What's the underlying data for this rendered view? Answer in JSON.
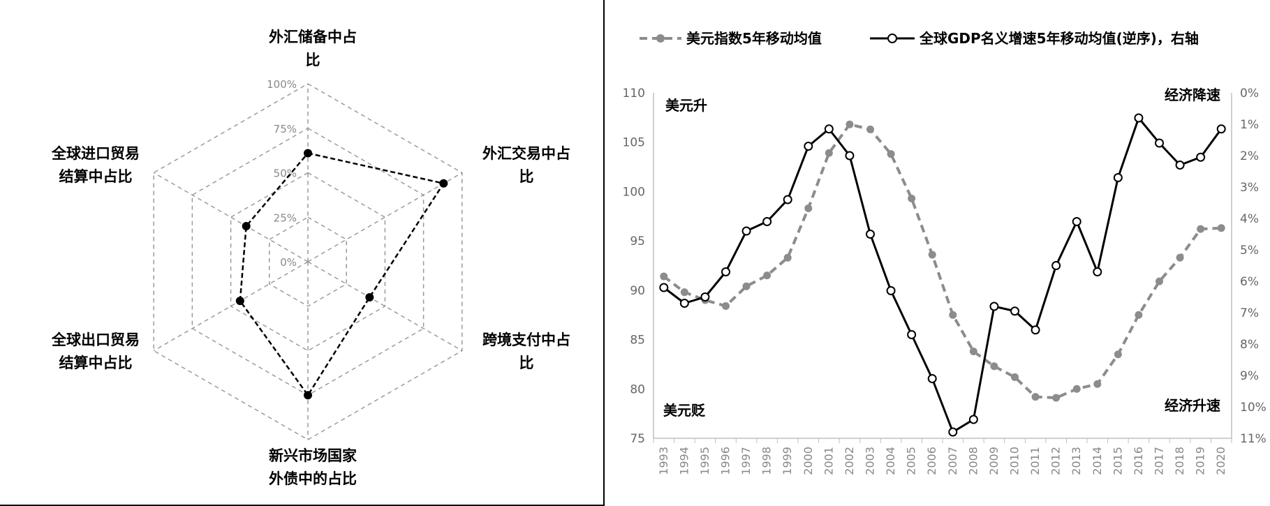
{
  "chart_data": [
    {
      "type": "radar",
      "categories": [
        [
          "外汇储备中占",
          "比"
        ],
        [
          "外汇交易中占",
          "比"
        ],
        [
          "跨境支付中占",
          "比"
        ],
        [
          "新兴市场国家",
          "外债中的占比"
        ],
        [
          "全球出口贸易",
          "结算中占比"
        ],
        [
          "全球进口贸易",
          "结算中占比"
        ]
      ],
      "ticks": [
        "0%",
        "25%",
        "50%",
        "75%",
        "100%"
      ],
      "range": [
        0,
        100
      ],
      "values": [
        61,
        88,
        40,
        75,
        44,
        40
      ],
      "grid": true,
      "colors": {
        "grid": "#999999",
        "series": "#000000"
      }
    },
    {
      "type": "line",
      "x": [
        1993,
        1994,
        1995,
        1996,
        1997,
        1998,
        1999,
        2000,
        2001,
        2002,
        2003,
        2004,
        2005,
        2006,
        2007,
        2008,
        2009,
        2010,
        2011,
        2012,
        2013,
        2014,
        2015,
        2016,
        2017,
        2018,
        2019,
        2020
      ],
      "xlabels": [
        "1993",
        "1994",
        "1995",
        "1996",
        "1997",
        "1998",
        "1999",
        "2000",
        "2001",
        "2002",
        "2003",
        "2004",
        "2005",
        "2006",
        "2007",
        "2008",
        "2009",
        "2010",
        "2011",
        "2012",
        "2013",
        "2014",
        "2015",
        "2016",
        "2017",
        "2018",
        "2019",
        "2020"
      ],
      "legend_position": "top",
      "y_left": {
        "range": [
          75,
          110
        ],
        "ticks": [
          "75",
          "80",
          "85",
          "90",
          "95",
          "100",
          "105",
          "110"
        ]
      },
      "y_right": {
        "range": [
          0,
          11
        ],
        "reversed": true,
        "ticks": [
          "0%",
          "1%",
          "2%",
          "3%",
          "4%",
          "5%",
          "6%",
          "7%",
          "8%",
          "9%",
          "10%",
          "11%"
        ]
      },
      "series": [
        {
          "name": "美元指数5年移动均值",
          "axis": "left",
          "style": "dashed",
          "color": "#8c8c8c",
          "values": [
            91.4,
            89.8,
            89.0,
            88.4,
            90.4,
            91.5,
            93.3,
            98.3,
            103.9,
            106.8,
            106.3,
            103.8,
            99.3,
            93.6,
            87.5,
            83.8,
            82.3,
            81.2,
            79.2,
            79.1,
            80.0,
            80.5,
            83.5,
            87.5,
            90.9,
            93.3,
            96.2,
            96.3
          ]
        },
        {
          "name": "全球GDP名义增速5年移动均值(逆序)，右轴",
          "axis": "right",
          "style": "solid",
          "color": "#000000",
          "values": [
            6.2,
            6.7,
            6.5,
            5.7,
            4.4,
            4.1,
            3.4,
            1.7,
            1.15,
            2.0,
            4.5,
            6.3,
            7.7,
            9.1,
            10.8,
            10.4,
            6.8,
            6.95,
            7.55,
            5.5,
            4.1,
            5.7,
            2.7,
            0.8,
            1.6,
            2.3,
            2.05,
            1.15
          ]
        }
      ],
      "annotations": {
        "top_left": "美元升",
        "bottom_left": "美元贬",
        "top_right": "经济降速",
        "bottom_right": "经济升速"
      }
    }
  ]
}
